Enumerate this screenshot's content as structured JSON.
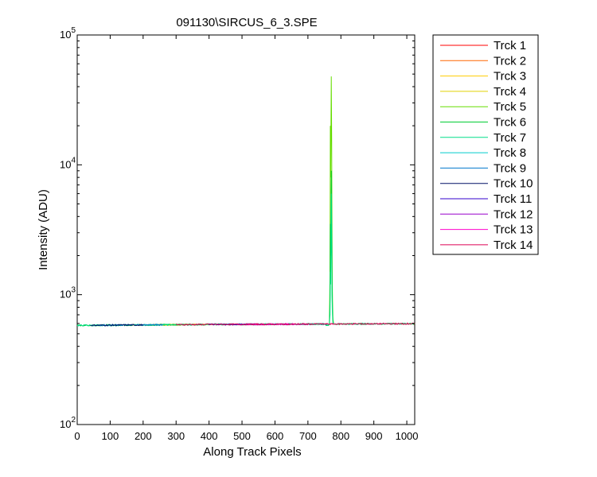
{
  "chart_data": {
    "type": "line",
    "title": "091130\\SIRCUS_6_3.SPE",
    "xlabel": "Along Track Pixels",
    "ylabel": "Intensity (ADU)",
    "xlim": [
      0,
      1024
    ],
    "ylim": [
      100,
      100000
    ],
    "yscale": "log",
    "grid": false,
    "legend_position": "outside-right",
    "x_ticks": [
      0,
      100,
      200,
      300,
      400,
      500,
      600,
      700,
      800,
      900,
      1000
    ],
    "y_ticks": [
      {
        "value": 100,
        "base": "10",
        "exp": "2"
      },
      {
        "value": 1000,
        "base": "10",
        "exp": "3"
      },
      {
        "value": 10000,
        "base": "10",
        "exp": "4"
      },
      {
        "value": 100000,
        "base": "10",
        "exp": "5"
      }
    ],
    "baseline": [
      [
        0,
        580
      ],
      [
        200,
        585
      ],
      [
        400,
        590
      ],
      [
        600,
        592
      ],
      [
        800,
        595
      ],
      [
        1024,
        598
      ]
    ],
    "peak_x": [
      755,
      762,
      765,
      767,
      768,
      769,
      770,
      771,
      772,
      773,
      774,
      775,
      776,
      778,
      782,
      790
    ],
    "series": [
      {
        "name": "Trck 1",
        "color": "#ff0000",
        "range": [
          980,
          1024
        ],
        "peak": null
      },
      {
        "name": "Trck 2",
        "color": "#ff6600",
        "range": [
          150,
          320
        ],
        "peak": null
      },
      {
        "name": "Trck 3",
        "color": "#ffcc00",
        "range": [
          220,
          360
        ],
        "peak": null
      },
      {
        "name": "Trck 4",
        "color": "#e0d000",
        "range": [
          260,
          400
        ],
        "peak": null
      },
      {
        "name": "Trck 5",
        "color": "#66dd00",
        "range": [
          680,
          800
        ],
        "peak": [
          580,
          580,
          600,
          1500,
          20000,
          8000,
          20000,
          48000,
          15000,
          3000,
          1200,
          800,
          650,
          600,
          590,
          595
        ]
      },
      {
        "name": "Trck 6",
        "color": "#00cc33",
        "range": [
          0,
          1024
        ],
        "peak": [
          580,
          580,
          590,
          900,
          3500,
          2000,
          4500,
          9000,
          3500,
          1500,
          900,
          700,
          620,
          600,
          590,
          595
        ]
      },
      {
        "name": "Trck 7",
        "color": "#00dd88",
        "range": [
          0,
          1024
        ],
        "peak": [
          580,
          580,
          590,
          700,
          1500,
          1200,
          2500,
          6000,
          2200,
          1000,
          750,
          650,
          610,
          600,
          590,
          595
        ]
      },
      {
        "name": "Trck 8",
        "color": "#00cccc",
        "range": [
          600,
          760
        ],
        "peak": null
      },
      {
        "name": "Trck 9",
        "color": "#0077cc",
        "range": [
          60,
          260
        ],
        "peak": null
      },
      {
        "name": "Trck 10",
        "color": "#001166",
        "range": [
          40,
          200
        ],
        "peak": null
      },
      {
        "name": "Trck 11",
        "color": "#3300cc",
        "range": [
          400,
          560
        ],
        "peak": null
      },
      {
        "name": "Trck 12",
        "color": "#9900cc",
        "range": [
          480,
          640
        ],
        "peak": null
      },
      {
        "name": "Trck 13",
        "color": "#ff00cc",
        "range": [
          520,
          700
        ],
        "peak": null
      },
      {
        "name": "Trck 14",
        "color": "#dd0055",
        "range": [
          300,
          1024
        ],
        "peak": null
      }
    ]
  }
}
